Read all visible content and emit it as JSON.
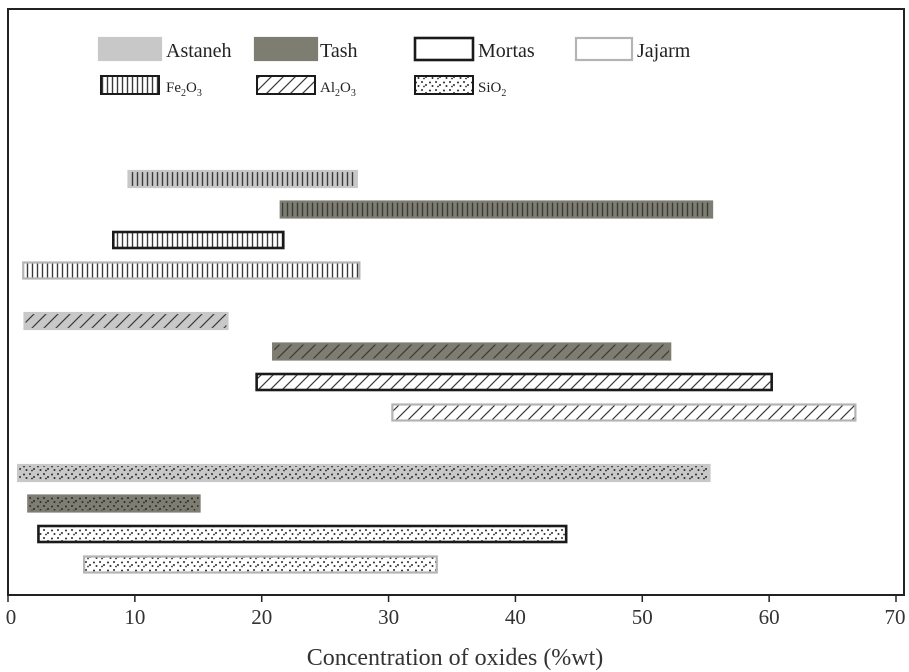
{
  "chart_data": {
    "type": "bar",
    "orientation": "horizontal-range",
    "xlabel": "Concentration of oxides (%wt)",
    "ylabel": "",
    "xlim": [
      0,
      70
    ],
    "xticks": [
      0,
      10,
      20,
      30,
      40,
      50,
      60,
      70
    ],
    "grid": false,
    "legend_position": "top",
    "groups": [
      {
        "oxide": "Fe2O3",
        "label": "Fe2O3",
        "ranges": [
          {
            "deposit": "Astaneh",
            "min": 9.5,
            "max": 27.5
          },
          {
            "deposit": "Tash",
            "min": 21.5,
            "max": 55.5
          },
          {
            "deposit": "Mortas",
            "min": 8.3,
            "max": 21.7
          },
          {
            "deposit": "Jajarm",
            "min": 1.2,
            "max": 27.7
          }
        ]
      },
      {
        "oxide": "Al2O3",
        "label": "Al2O3",
        "ranges": [
          {
            "deposit": "Astaneh",
            "min": 1.3,
            "max": 17.3
          },
          {
            "deposit": "Tash",
            "min": 20.9,
            "max": 52.2
          },
          {
            "deposit": "Mortas",
            "min": 19.6,
            "max": 60.2
          },
          {
            "deposit": "Jajarm",
            "min": 30.3,
            "max": 66.8
          }
        ]
      },
      {
        "oxide": "SiO2",
        "label": "SiO2",
        "ranges": [
          {
            "deposit": "Astaneh",
            "min": 0.8,
            "max": 55.3
          },
          {
            "deposit": "Tash",
            "min": 1.6,
            "max": 15.1
          },
          {
            "deposit": "Mortas",
            "min": 2.4,
            "max": 44.0
          },
          {
            "deposit": "Jajarm",
            "min": 6.0,
            "max": 33.8
          }
        ]
      }
    ],
    "deposits": [
      {
        "name": "Astaneh",
        "fill": "#c8c8c8",
        "stroke": "#c8c8c8"
      },
      {
        "name": "Tash",
        "fill": "#7d7d72",
        "stroke": "#7d7d72"
      },
      {
        "name": "Mortas",
        "fill": "#ffffff",
        "stroke": "#1a1a1a"
      },
      {
        "name": "Jajarm",
        "fill": "#ffffff",
        "stroke": "#b4b4b4"
      }
    ],
    "legend": {
      "deposits": [
        "Astaneh",
        "Tash",
        "Mortas",
        "Jajarm"
      ],
      "oxides": [
        {
          "pattern": "vertical-lines",
          "base": "Fe",
          "sub1": "2",
          "mid": "O",
          "sub2": "3"
        },
        {
          "pattern": "diagonal-lines",
          "base": "Al",
          "sub1": "2",
          "mid": "O",
          "sub2": "3"
        },
        {
          "pattern": "dots",
          "base": "SiO",
          "sub1": "2",
          "mid": "",
          "sub2": ""
        }
      ]
    }
  }
}
